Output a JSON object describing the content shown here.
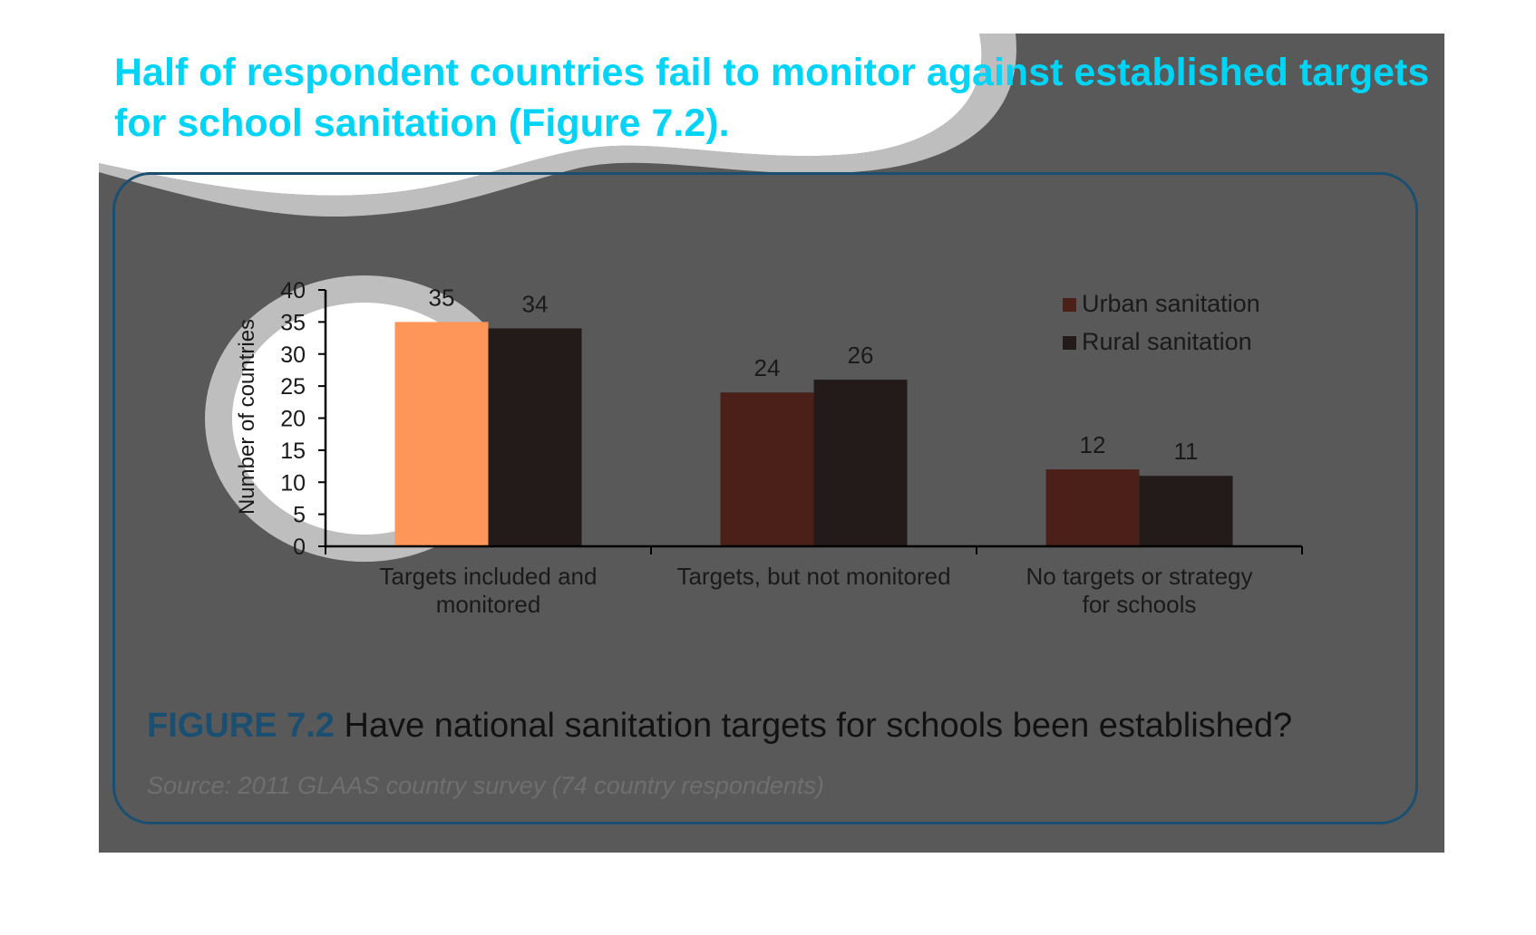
{
  "headline": "Half of respondent countries fail to monitor against established targets for school sanitation (Figure 7.2).",
  "figure": {
    "label": "FIGURE 7.2",
    "caption": "Have national sanitation targets for schools been established?",
    "source": "Source: 2011 GLAAS country survey (74 country respondents)"
  },
  "colors": {
    "urban": "#4a2018",
    "urban_highlight": "#ff9659",
    "rural": "#221b1a",
    "headline": "#00d4f6",
    "frame": "#1b4f72"
  },
  "chart_data": {
    "type": "bar",
    "title": "",
    "xlabel": "",
    "ylabel": "Number of countries",
    "ylim": [
      0,
      40
    ],
    "yticks": [
      0,
      5,
      10,
      15,
      20,
      25,
      30,
      35,
      40
    ],
    "categories": [
      [
        "Targets included and",
        "monitored"
      ],
      [
        "Targets, but not monitored"
      ],
      [
        "No targets or strategy",
        "for schools"
      ]
    ],
    "series": [
      {
        "name": "Urban sanitation",
        "values": [
          35,
          24,
          12
        ]
      },
      {
        "name": "Rural sanitation",
        "values": [
          34,
          26,
          11
        ]
      }
    ],
    "legend_position": "top-right",
    "grid": false
  }
}
